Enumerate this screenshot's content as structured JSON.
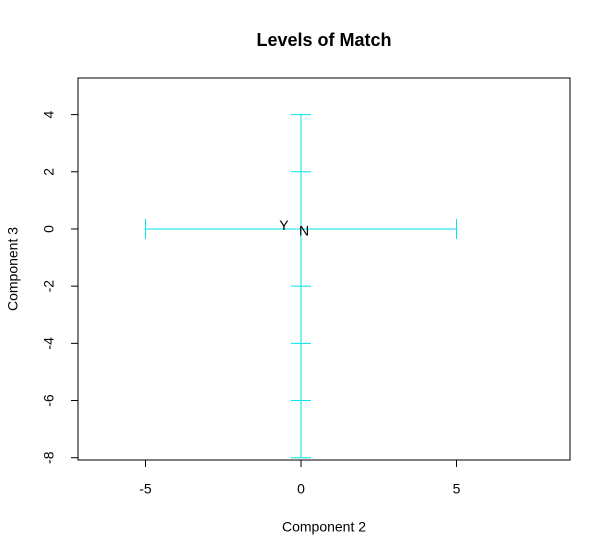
{
  "chart_data": {
    "type": "scatter",
    "title": "Levels of Match",
    "xlabel": "Component 2",
    "ylabel": "Component 3",
    "xlim": [
      -7.17,
      8.65
    ],
    "ylim": [
      -8.08,
      5.28
    ],
    "xticks": [
      -5,
      0,
      5
    ],
    "yticks": [
      -8,
      -6,
      -4,
      -2,
      0,
      2,
      4
    ],
    "labels": [
      "Y",
      "N"
    ],
    "x": [
      -0.55,
      0.1
    ],
    "y": [
      0.1,
      -0.1
    ],
    "color": "#2222cc",
    "line_color": "#00e5ee",
    "hline": {
      "from": -5,
      "to": 5,
      "ticks": [
        -5,
        5
      ]
    },
    "vline": {
      "from": -8,
      "to": 4,
      "ticks": [
        4,
        2,
        -2,
        -4,
        -6,
        -8
      ]
    }
  }
}
